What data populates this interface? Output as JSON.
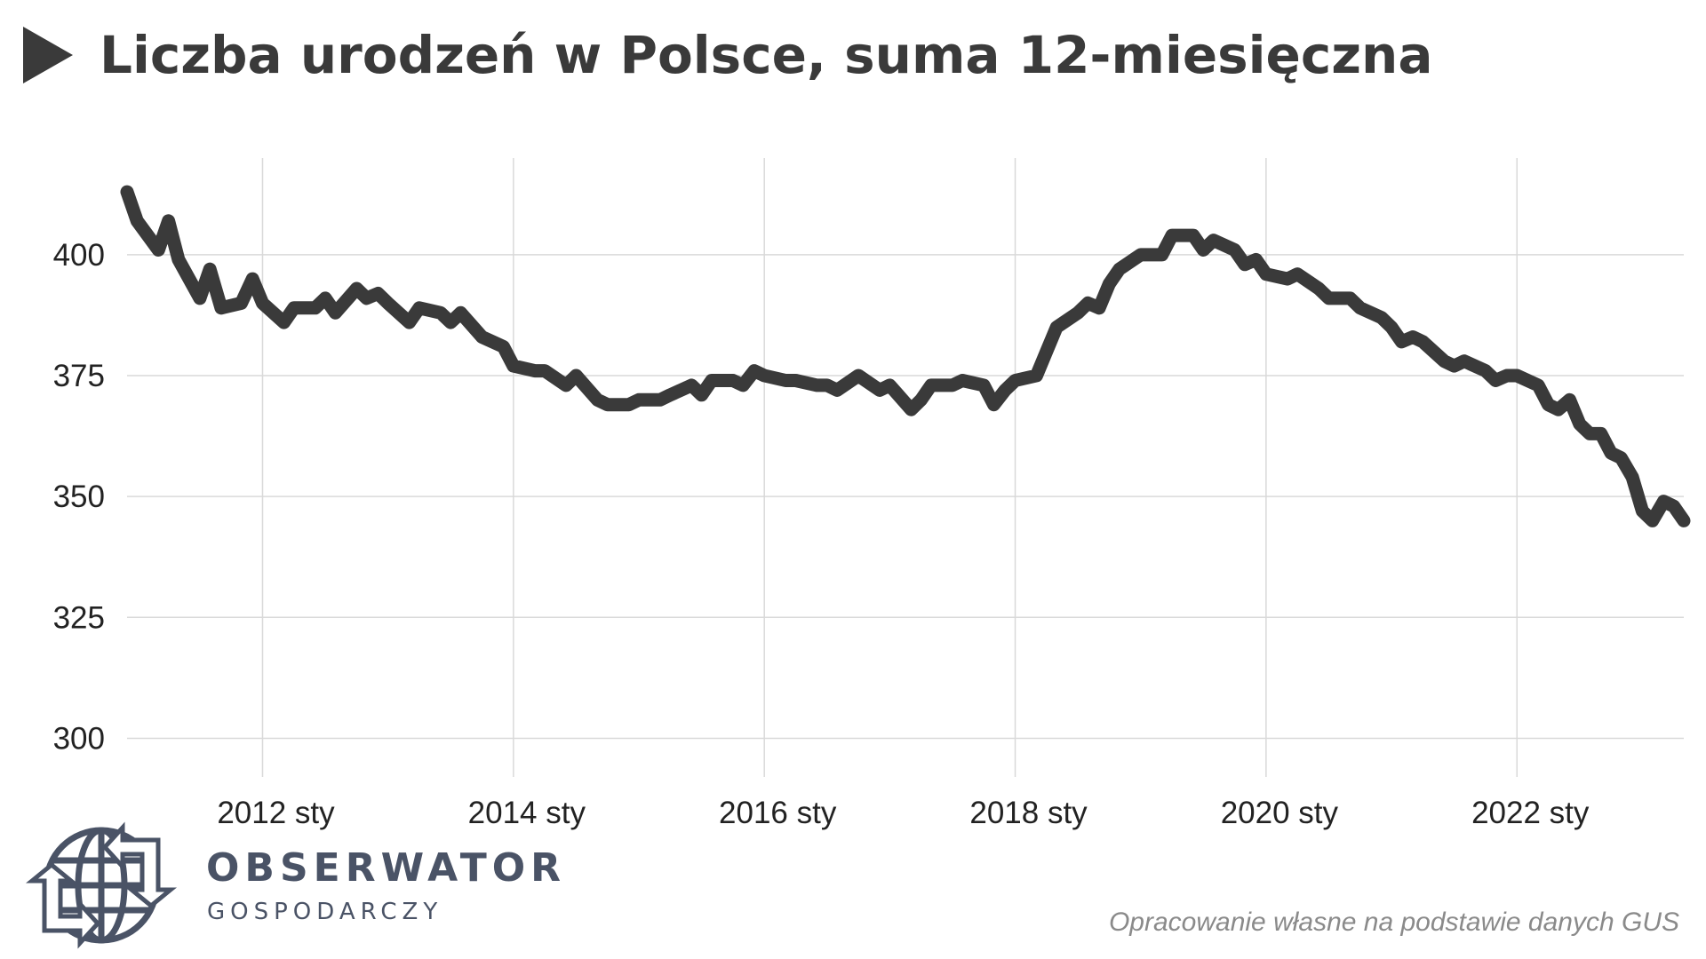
{
  "header": {
    "title": "Liczba urodzeń w Polsce, suma 12-miesięczna",
    "arrow_icon": "play-triangle"
  },
  "branding": {
    "name_top": "OBSERWATOR",
    "name_bottom": "GOSPODARCZY",
    "logo_icon": "globe-arrows-icon",
    "color": "#4a5366"
  },
  "source_note": "Opracowanie własne na podstawie danych GUS",
  "chart_data": {
    "type": "line",
    "title": "Liczba urodzeń w Polsce, suma 12-miesięczna",
    "xlabel": "",
    "ylabel": "",
    "x_ticks": [
      "2012 sty",
      "2014 sty",
      "2016 sty",
      "2018 sty",
      "2020 sty",
      "2022 sty"
    ],
    "y_ticks": [
      300,
      325,
      350,
      375,
      400
    ],
    "xlim": [
      2010.92,
      2023.33
    ],
    "ylim": [
      292,
      420
    ],
    "grid": true,
    "legend": "none",
    "line_color": "#3a3a3a",
    "series": [
      {
        "values": [
          [
            2010.92,
            413
          ],
          [
            2011.0,
            407
          ],
          [
            2011.17,
            401
          ],
          [
            2011.25,
            407
          ],
          [
            2011.33,
            399
          ],
          [
            2011.5,
            391
          ],
          [
            2011.58,
            397
          ],
          [
            2011.67,
            389
          ],
          [
            2011.83,
            390
          ],
          [
            2011.92,
            395
          ],
          [
            2012.0,
            390
          ],
          [
            2012.17,
            386
          ],
          [
            2012.25,
            389
          ],
          [
            2012.42,
            389
          ],
          [
            2012.5,
            391
          ],
          [
            2012.58,
            388
          ],
          [
            2012.75,
            393
          ],
          [
            2012.83,
            391
          ],
          [
            2012.92,
            392
          ],
          [
            2013.0,
            390
          ],
          [
            2013.17,
            386
          ],
          [
            2013.25,
            389
          ],
          [
            2013.42,
            388
          ],
          [
            2013.5,
            386
          ],
          [
            2013.58,
            388
          ],
          [
            2013.75,
            383
          ],
          [
            2013.92,
            381
          ],
          [
            2014.0,
            377
          ],
          [
            2014.17,
            376
          ],
          [
            2014.25,
            376
          ],
          [
            2014.42,
            373
          ],
          [
            2014.5,
            375
          ],
          [
            2014.67,
            370
          ],
          [
            2014.75,
            369
          ],
          [
            2014.92,
            369
          ],
          [
            2015.0,
            370
          ],
          [
            2015.17,
            370
          ],
          [
            2015.25,
            371
          ],
          [
            2015.42,
            373
          ],
          [
            2015.5,
            371
          ],
          [
            2015.58,
            374
          ],
          [
            2015.75,
            374
          ],
          [
            2015.83,
            373
          ],
          [
            2015.92,
            376
          ],
          [
            2016.0,
            375
          ],
          [
            2016.17,
            374
          ],
          [
            2016.25,
            374
          ],
          [
            2016.42,
            373
          ],
          [
            2016.5,
            373
          ],
          [
            2016.58,
            372
          ],
          [
            2016.75,
            375
          ],
          [
            2016.92,
            372
          ],
          [
            2017.0,
            373
          ],
          [
            2017.17,
            368
          ],
          [
            2017.25,
            370
          ],
          [
            2017.33,
            373
          ],
          [
            2017.5,
            373
          ],
          [
            2017.58,
            374
          ],
          [
            2017.75,
            373
          ],
          [
            2017.83,
            369
          ],
          [
            2017.92,
            372
          ],
          [
            2018.0,
            374
          ],
          [
            2018.17,
            375
          ],
          [
            2018.25,
            380
          ],
          [
            2018.33,
            385
          ],
          [
            2018.5,
            388
          ],
          [
            2018.58,
            390
          ],
          [
            2018.67,
            389
          ],
          [
            2018.75,
            394
          ],
          [
            2018.83,
            397
          ],
          [
            2019.0,
            400
          ],
          [
            2019.17,
            400
          ],
          [
            2019.25,
            404
          ],
          [
            2019.42,
            404
          ],
          [
            2019.5,
            401
          ],
          [
            2019.58,
            403
          ],
          [
            2019.75,
            401
          ],
          [
            2019.83,
            398
          ],
          [
            2019.92,
            399
          ],
          [
            2020.0,
            396
          ],
          [
            2020.17,
            395
          ],
          [
            2020.25,
            396
          ],
          [
            2020.42,
            393
          ],
          [
            2020.5,
            391
          ],
          [
            2020.67,
            391
          ],
          [
            2020.75,
            389
          ],
          [
            2020.92,
            387
          ],
          [
            2021.0,
            385
          ],
          [
            2021.08,
            382
          ],
          [
            2021.17,
            383
          ],
          [
            2021.25,
            382
          ],
          [
            2021.42,
            378
          ],
          [
            2021.5,
            377
          ],
          [
            2021.58,
            378
          ],
          [
            2021.75,
            376
          ],
          [
            2021.83,
            374
          ],
          [
            2021.92,
            375
          ],
          [
            2022.0,
            375
          ],
          [
            2022.17,
            373
          ],
          [
            2022.25,
            369
          ],
          [
            2022.33,
            368
          ],
          [
            2022.42,
            370
          ],
          [
            2022.5,
            365
          ],
          [
            2022.58,
            363
          ],
          [
            2022.67,
            363
          ],
          [
            2022.75,
            359
          ],
          [
            2022.83,
            358
          ],
          [
            2022.92,
            354
          ],
          [
            2023.0,
            347
          ],
          [
            2023.08,
            345
          ],
          [
            2023.17,
            349
          ],
          [
            2023.25,
            348
          ],
          [
            2023.33,
            345
          ]
        ]
      }
    ]
  }
}
